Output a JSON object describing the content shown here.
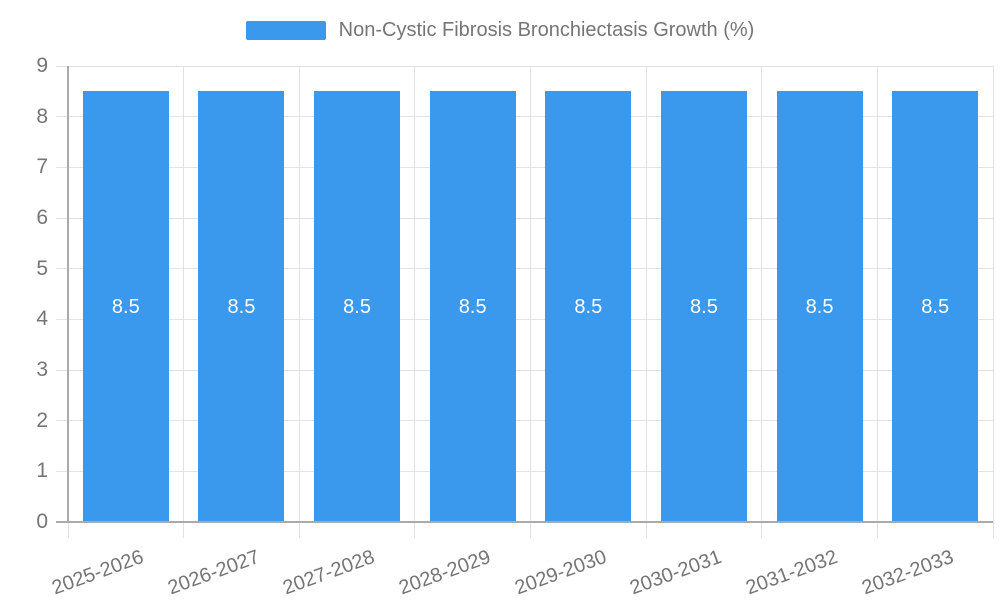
{
  "legend": {
    "label": "Non-Cystic Fibrosis Bronchiectasis Growth (%)"
  },
  "chart_data": {
    "type": "bar",
    "title": "Non-Cystic Fibrosis Bronchiectasis Growth (%)",
    "categories": [
      "2025-2026",
      "2026-2027",
      "2027-2028",
      "2028-2029",
      "2029-2030",
      "2030-2031",
      "2031-2032",
      "2032-2033"
    ],
    "values": [
      8.5,
      8.5,
      8.5,
      8.5,
      8.5,
      8.5,
      8.5,
      8.5
    ],
    "value_labels": [
      "8.5",
      "8.5",
      "8.5",
      "8.5",
      "8.5",
      "8.5",
      "8.5",
      "8.5"
    ],
    "xlabel": "",
    "ylabel": "",
    "ylim": [
      0,
      9
    ],
    "yticks": [
      0,
      1,
      2,
      3,
      4,
      5,
      6,
      7,
      8,
      9
    ],
    "grid": true,
    "legend_position": "top-center",
    "value_labels_inside_bars": true
  },
  "colors": {
    "bar": "#3a99ec",
    "grid": "#e2e2e2",
    "axis": "#aaaaaa",
    "text": "#757575",
    "value_label": "#ffffff",
    "background": "#ffffff"
  }
}
